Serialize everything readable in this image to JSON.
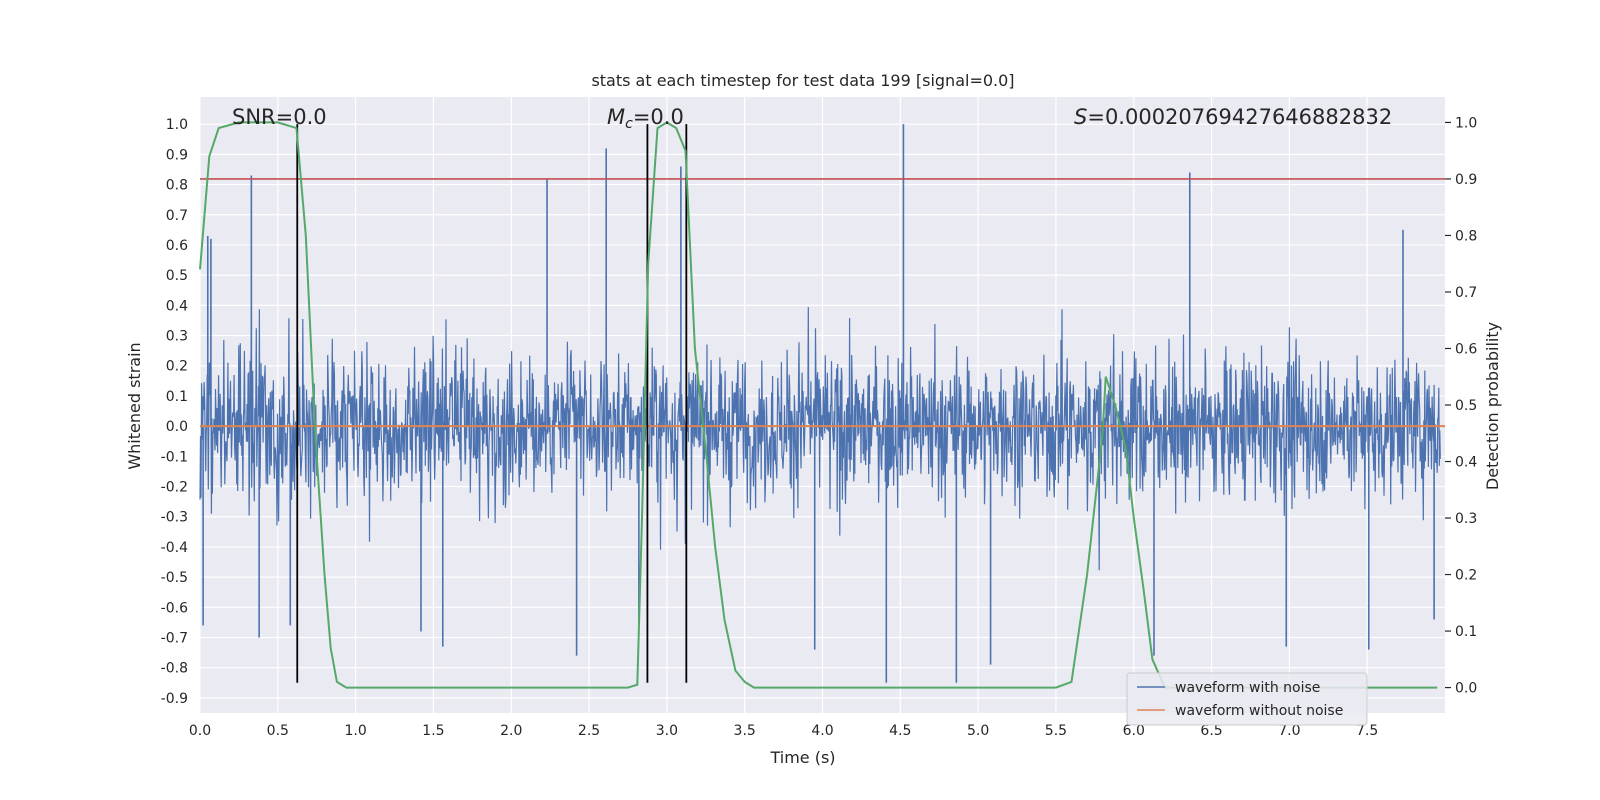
{
  "chart_data": {
    "type": "line",
    "title": "stats at each timestep for test data 199 [signal=0.0]",
    "xlabel": "Time (s)",
    "ylabel_left": "Whitened strain",
    "ylabel_right": "Detection probability",
    "xlim": [
      0.0,
      8.0
    ],
    "ylim_left": [
      -0.95,
      1.09
    ],
    "ylim_right": [
      -0.045,
      1.045
    ],
    "x_ticks": [
      "0.0",
      "0.5",
      "1.0",
      "1.5",
      "2.0",
      "2.5",
      "3.0",
      "3.5",
      "4.0",
      "4.5",
      "5.0",
      "5.5",
      "6.0",
      "6.5",
      "7.0",
      "7.5"
    ],
    "x_tick_values": [
      0.0,
      0.5,
      1.0,
      1.5,
      2.0,
      2.5,
      3.0,
      3.5,
      4.0,
      4.5,
      5.0,
      5.5,
      6.0,
      6.5,
      7.0,
      7.5
    ],
    "y_left_ticks": [
      "1.0",
      "0.9",
      "0.8",
      "0.7",
      "0.6",
      "0.5",
      "0.4",
      "0.3",
      "0.2",
      "0.1",
      "0.0",
      "-0.1",
      "-0.2",
      "-0.3",
      "-0.4",
      "-0.5",
      "-0.6",
      "-0.7",
      "-0.8",
      "-0.9"
    ],
    "y_left_tick_values": [
      1.0,
      0.9,
      0.8,
      0.7,
      0.6,
      0.5,
      0.4,
      0.3,
      0.2,
      0.1,
      0.0,
      -0.1,
      -0.2,
      -0.3,
      -0.4,
      -0.5,
      -0.6,
      -0.7,
      -0.8,
      -0.9
    ],
    "y_right_ticks": [
      "1.0",
      "0.9",
      "0.8",
      "0.7",
      "0.6",
      "0.5",
      "0.4",
      "0.3",
      "0.2",
      "0.1",
      "0.0"
    ],
    "y_right_tick_values": [
      1.0,
      0.9,
      0.8,
      0.7,
      0.6,
      0.5,
      0.4,
      0.3,
      0.2,
      0.1,
      0.0
    ],
    "annotations": {
      "snr": "SNR=0.0",
      "mc_symbol": "M",
      "mc_sub": "c",
      "mc_value": "=0.0",
      "s_symbol": "S",
      "s_value": "=0.00020769427646882832"
    },
    "threshold_right": 0.9,
    "vertical_lines_x": [
      0.625,
      2.875,
      3.125
    ],
    "vertical_lines_span_left": [
      -0.85,
      1.0
    ],
    "series": [
      {
        "name": "waveform with noise",
        "color": "#4c72b0",
        "axis": "left",
        "description": "noise, dense",
        "spikes": [
          {
            "x": 0.02,
            "y": -0.66
          },
          {
            "x": 0.05,
            "y": 0.63
          },
          {
            "x": 0.07,
            "y": 0.62
          },
          {
            "x": 0.33,
            "y": 0.83
          },
          {
            "x": 0.38,
            "y": -0.7
          },
          {
            "x": 0.58,
            "y": -0.66
          },
          {
            "x": 1.42,
            "y": -0.68
          },
          {
            "x": 1.56,
            "y": -0.73
          },
          {
            "x": 2.23,
            "y": 0.82
          },
          {
            "x": 2.42,
            "y": -0.76
          },
          {
            "x": 2.61,
            "y": 0.92
          },
          {
            "x": 2.82,
            "y": -0.66
          },
          {
            "x": 3.09,
            "y": 0.86
          },
          {
            "x": 3.95,
            "y": -0.74
          },
          {
            "x": 4.41,
            "y": -0.85
          },
          {
            "x": 4.52,
            "y": 1.0
          },
          {
            "x": 4.86,
            "y": -0.85
          },
          {
            "x": 5.08,
            "y": -0.79
          },
          {
            "x": 6.36,
            "y": 0.84
          },
          {
            "x": 6.13,
            "y": -0.76
          },
          {
            "x": 6.98,
            "y": -0.73
          },
          {
            "x": 7.51,
            "y": -0.74
          },
          {
            "x": 7.73,
            "y": 0.65
          },
          {
            "x": 7.93,
            "y": -0.64
          }
        ],
        "envelope": {
          "typical": 0.35,
          "max": 0.6
        }
      },
      {
        "name": "waveform without noise",
        "color": "#dd8452",
        "axis": "left",
        "y_constant": 0.0
      },
      {
        "name": "detection probability",
        "color": "#55a868",
        "axis": "right",
        "x": [
          0.0,
          0.06,
          0.12,
          0.25,
          0.5,
          0.62,
          0.68,
          0.74,
          0.8,
          0.84,
          0.88,
          0.94,
          1.0,
          1.5,
          2.0,
          2.5,
          2.75,
          2.81,
          2.84,
          2.88,
          2.94,
          3.0,
          3.06,
          3.12,
          3.18,
          3.25,
          3.31,
          3.37,
          3.44,
          3.5,
          3.56,
          4.0,
          5.0,
          5.5,
          5.6,
          5.7,
          5.8,
          5.82,
          5.88,
          5.95,
          6.0,
          6.06,
          6.12,
          6.2,
          6.5,
          7.0,
          7.5,
          7.95
        ],
        "y": [
          0.74,
          0.94,
          0.99,
          1.0,
          1.0,
          0.99,
          0.8,
          0.45,
          0.2,
          0.07,
          0.01,
          0.0,
          0.0,
          0.0,
          0.0,
          0.0,
          0.0,
          0.005,
          0.3,
          0.75,
          0.99,
          1.0,
          0.99,
          0.95,
          0.6,
          0.42,
          0.25,
          0.12,
          0.03,
          0.01,
          0.0,
          0.0,
          0.0,
          0.0,
          0.01,
          0.2,
          0.45,
          0.55,
          0.5,
          0.42,
          0.3,
          0.18,
          0.05,
          0.0,
          0.0,
          0.0,
          0.0,
          0.0
        ]
      }
    ],
    "legend": [
      {
        "label": "waveform with noise",
        "color": "#4c72b0"
      },
      {
        "label": "waveform without noise",
        "color": "#dd8452"
      }
    ],
    "legend_position": "lower-right",
    "grid": true,
    "colors": {
      "background": "#eaeaf2",
      "grid": "#ffffff",
      "threshold": "#c44e52",
      "vlines": "#000000"
    }
  }
}
